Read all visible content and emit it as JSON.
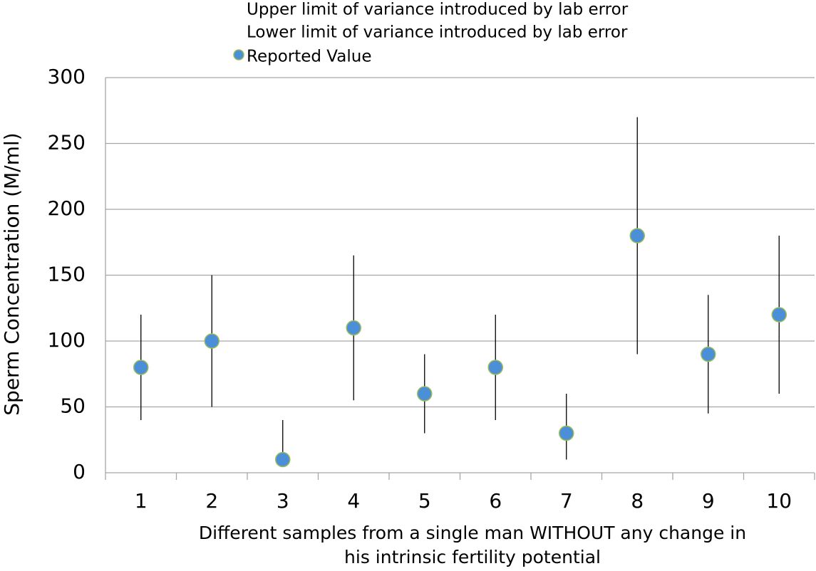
{
  "chart_data": {
    "type": "errorbar",
    "y_label": "Sperm Concentration (M/ml)",
    "x_label": [
      "Different samples from a single man WITHOUT any change in",
      "his intrinsic fertility potential"
    ],
    "categories": [
      "1",
      "2",
      "3",
      "4",
      "5",
      "6",
      "7",
      "8",
      "9",
      "10"
    ],
    "series": [
      {
        "name": "Upper limit of variance introduced by lab error",
        "color": "#000000",
        "values": [
          120,
          150,
          40,
          165,
          90,
          120,
          60,
          270,
          135,
          180
        ]
      },
      {
        "name": "Lower limit of variance introduced by lab error",
        "color": "#000000",
        "values": [
          40,
          50,
          5,
          55,
          30,
          40,
          10,
          90,
          45,
          60
        ]
      },
      {
        "name": "Reported Value",
        "color": "#4a8fd8",
        "values": [
          80,
          100,
          10,
          110,
          60,
          80,
          30,
          180,
          90,
          120
        ]
      }
    ],
    "ylim": [
      0,
      300
    ],
    "yticks": [
      0,
      50,
      100,
      150,
      200,
      250,
      300
    ],
    "grid": true
  }
}
